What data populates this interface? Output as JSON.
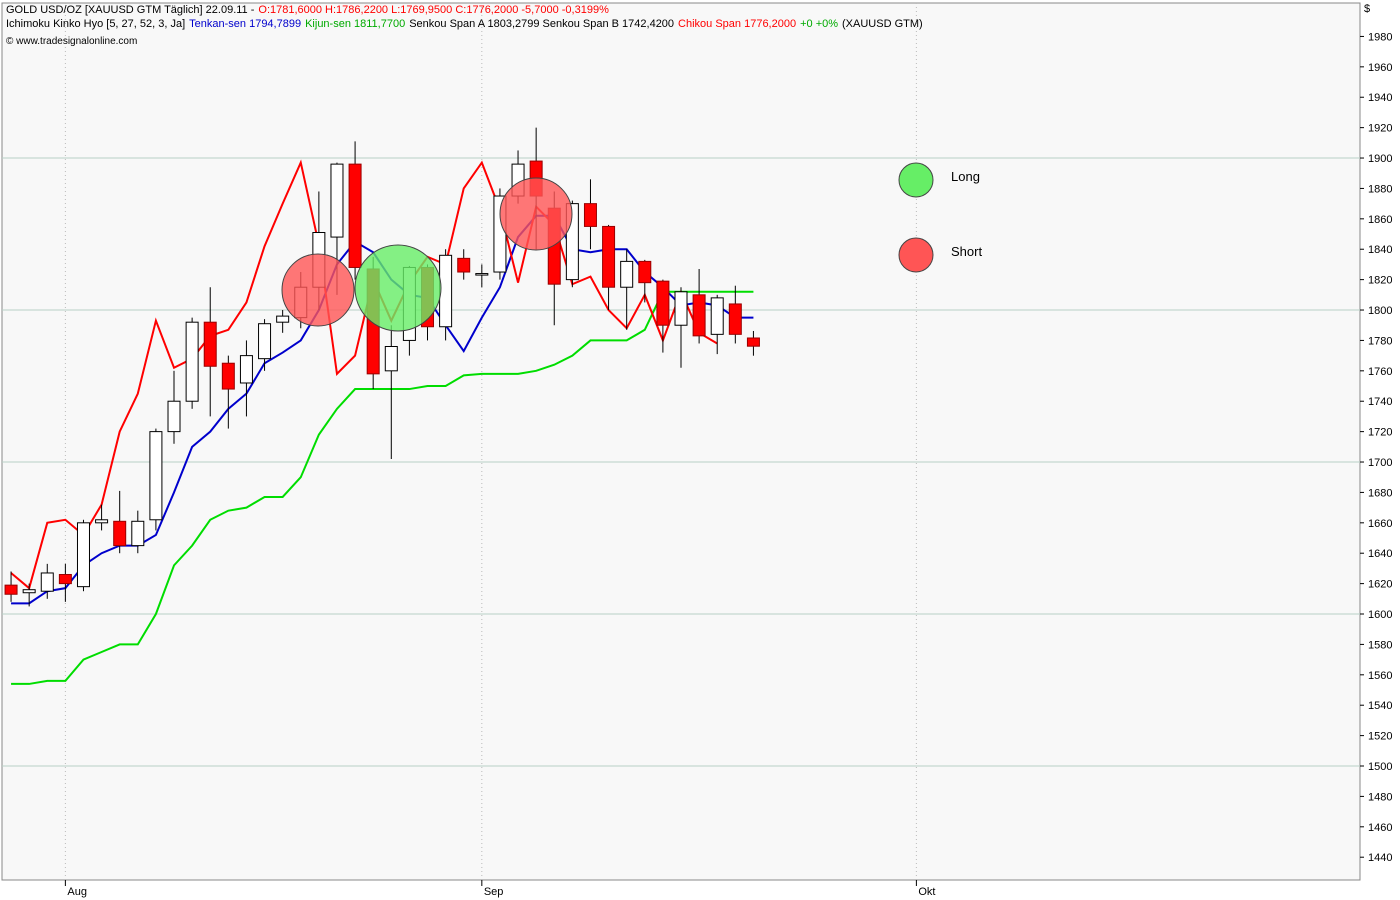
{
  "chart_data": {
    "type": "candlestick",
    "title": "GOLD USD/OZ [XAUUSD GTM  Täglich] 22.09.11 -",
    "quote": "O:1781,6000 H:1786,2200 L:1769,9500 C:1776,2000 -5,7000 -0,3199%",
    "indicator": "Ichimoku Kinko Hyo [5, 27, 52, 3, Ja]",
    "senkou_text": "Senkou Span A 1803,2799 Senkou Span B 1742,4200",
    "change_text": "+0 +0%",
    "symbol_text": "(XAUUSD GTM)",
    "source": "© www.tradesignalonline.com",
    "currency": "$",
    "up_color": "#ffffff",
    "down_color": "#ff0000",
    "x": [
      0,
      1,
      2,
      3,
      4,
      5,
      6,
      7,
      8,
      9,
      10,
      11,
      12,
      13,
      14,
      15,
      16,
      17,
      18,
      19,
      20,
      21,
      22,
      23,
      24,
      25,
      26,
      27,
      28,
      29,
      30,
      31,
      32,
      33,
      34,
      35,
      36,
      37,
      38,
      39,
      40,
      41
    ],
    "open": [
      1619,
      1614,
      1615,
      1626,
      1618,
      1660,
      1661,
      1645,
      1662,
      1720,
      1740,
      1792,
      1765,
      1752,
      1768,
      1792,
      1795,
      1815,
      1848,
      1896,
      1827,
      1760,
      1780,
      1828,
      1789,
      1834,
      1823,
      1825,
      1875,
      1898,
      1867,
      1820,
      1870,
      1855,
      1815,
      1832,
      1819,
      1790,
      1810,
      1784,
      1804,
      1781.6
    ],
    "high": [
      1628,
      1620,
      1633,
      1633,
      1662,
      1672,
      1681,
      1668,
      1722,
      1760,
      1795,
      1815,
      1770,
      1780,
      1794,
      1800,
      1825,
      1878,
      1897,
      1911,
      1835,
      1790,
      1829,
      1830,
      1840,
      1840,
      1830,
      1880,
      1905,
      1920,
      1878,
      1872,
      1886,
      1856,
      1840,
      1833,
      1820,
      1815,
      1827,
      1810,
      1816,
      1786.22
    ],
    "low": [
      1608,
      1605,
      1610,
      1608,
      1615,
      1655,
      1640,
      1640,
      1655,
      1712,
      1735,
      1730,
      1722,
      1730,
      1760,
      1785,
      1788,
      1800,
      1810,
      1820,
      1748,
      1702,
      1770,
      1780,
      1780,
      1820,
      1815,
      1820,
      1870,
      1840,
      1790,
      1815,
      1840,
      1800,
      1787,
      1805,
      1772,
      1762,
      1778,
      1771,
      1778,
      1769.95
    ],
    "close": [
      1613,
      1616,
      1627,
      1620,
      1660,
      1662,
      1645,
      1661,
      1720,
      1740,
      1792,
      1763,
      1748,
      1770,
      1791,
      1796,
      1815,
      1851,
      1896,
      1828,
      1758,
      1776,
      1828,
      1789,
      1836,
      1825,
      1824,
      1875,
      1896,
      1875,
      1817,
      1870,
      1855,
      1815,
      1832,
      1818,
      1790,
      1812,
      1783,
      1808,
      1784,
      1776.2
    ],
    "series": [
      {
        "name": "Tenkan-sen 1794,7899",
        "color": "#0000cc",
        "values": [
          1607,
          1607,
          1615,
          1617,
          1632,
          1640,
          1645,
          1645,
          1652,
          1680,
          1710,
          1720,
          1735,
          1745,
          1765,
          1772,
          1780,
          1800,
          1830,
          1845,
          1838,
          1820,
          1810,
          1808,
          1790,
          1773,
          1795,
          1815,
          1848,
          1862,
          1862,
          1840,
          1838,
          1840,
          1840,
          1825,
          1815,
          1803,
          1805,
          1803,
          1795,
          1795
        ]
      },
      {
        "name": "Kijun-sen 1811,7700",
        "color": "#00dd00",
        "values": [
          1554,
          1554,
          1556,
          1556,
          1570,
          1575,
          1580,
          1580,
          1600,
          1632,
          1645,
          1662,
          1668,
          1670,
          1677,
          1677,
          1690,
          1718,
          1735,
          1748,
          1748,
          1748,
          1748,
          1750,
          1750,
          1757,
          1758,
          1758,
          1758,
          1760,
          1764,
          1770,
          1780,
          1780,
          1780,
          1787,
          1812,
          1812,
          1812,
          1812,
          1812,
          1812
        ]
      },
      {
        "name": "Chikou Span 1776,2000",
        "color": "#ff0000",
        "values": [
          1627,
          1617,
          1660,
          1662,
          1652,
          1672,
          1720,
          1745,
          1793,
          1762,
          1768,
          1783,
          1787,
          1805,
          1842,
          1870,
          1897,
          1843,
          1758,
          1770,
          1820,
          1793,
          1818,
          1835,
          1830,
          1880,
          1897,
          1866,
          1818,
          1868,
          1856,
          1817,
          1822,
          1800,
          1788,
          1810,
          1780,
          1812,
          1785,
          1778,
          null,
          null
        ]
      }
    ],
    "signals": [
      {
        "label": "Long",
        "color": "#66ee66"
      },
      {
        "label": "Short",
        "color": "#ff5555"
      }
    ],
    "xlim": [
      -0.5,
      74.5
    ],
    "xticks": [
      {
        "value": 3,
        "label": "Aug"
      },
      {
        "value": 26,
        "label": "Sep"
      },
      {
        "value": 50,
        "label": "Okt"
      }
    ],
    "ylim": [
      1425,
      2002
    ],
    "yticks": [
      1440,
      1460,
      1480,
      1500,
      1520,
      1540,
      1560,
      1580,
      1600,
      1620,
      1640,
      1660,
      1680,
      1700,
      1720,
      1740,
      1760,
      1780,
      1800,
      1820,
      1840,
      1860,
      1880,
      1900,
      1920,
      1940,
      1960,
      1980
    ],
    "grid": true
  }
}
